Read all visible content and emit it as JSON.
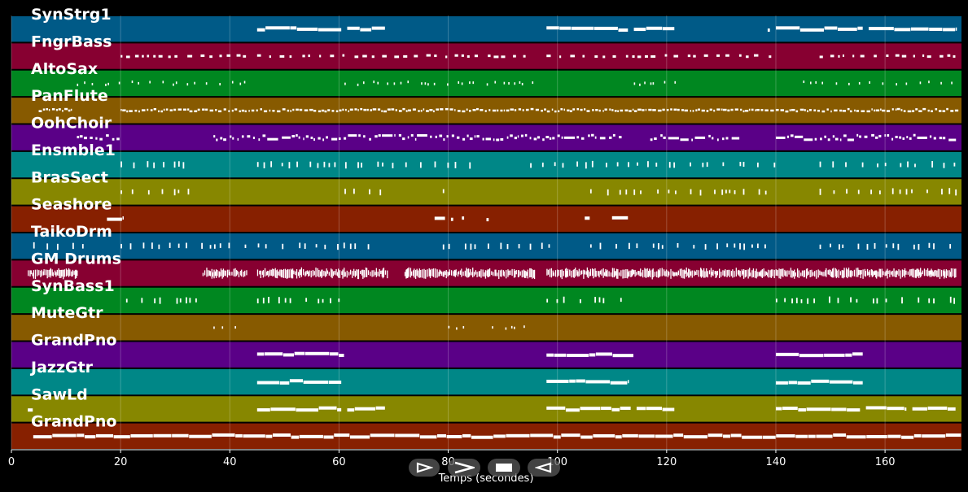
{
  "chart_data": {
    "type": "piano-roll",
    "xlabel": "Temps (secondes)",
    "xlim": [
      0,
      174
    ],
    "xticks": [
      0,
      20,
      40,
      60,
      80,
      100,
      120,
      140,
      160
    ],
    "tracks": [
      {
        "name": "SynStrg1",
        "color": "#005a87",
        "pattern": "block",
        "segments": [
          [
            45,
            60.5
          ],
          [
            61.5,
            68.5
          ],
          [
            98,
            113
          ],
          [
            114,
            121.5
          ],
          [
            138.5,
            139
          ],
          [
            140,
            156
          ],
          [
            157,
            173
          ]
        ]
      },
      {
        "name": "FngrBass",
        "color": "#870031",
        "pattern": "dots",
        "segments": [
          [
            20,
            44
          ],
          [
            45,
            94
          ],
          [
            98,
            139
          ],
          [
            148,
            173
          ]
        ]
      },
      {
        "name": "AltoSax",
        "color": "#008720",
        "pattern": "sparse",
        "segments": [
          [
            12,
            43
          ],
          [
            61,
            96
          ],
          [
            114,
            122
          ],
          [
            145,
            173
          ]
        ]
      },
      {
        "name": "PanFlute",
        "color": "#875a00",
        "pattern": "dense",
        "segments": [
          [
            5,
            11
          ],
          [
            20,
            173
          ]
        ]
      },
      {
        "name": "OohChoir",
        "color": "#5a0087",
        "pattern": "mixed",
        "segments": [
          [
            12,
            20
          ],
          [
            37,
            112
          ],
          [
            117,
            132
          ],
          [
            140,
            173
          ]
        ]
      },
      {
        "name": "Ensmble1",
        "color": "#008787",
        "pattern": "ticks",
        "segments": [
          [
            20,
            34
          ],
          [
            45,
            84
          ],
          [
            95,
            140
          ],
          [
            148,
            173
          ]
        ]
      },
      {
        "name": "BrasSect",
        "color": "#878700",
        "pattern": "ticks",
        "segments": [
          [
            20,
            33
          ],
          [
            61,
            68
          ],
          [
            79,
            80
          ],
          [
            106,
            139
          ],
          [
            148,
            173
          ]
        ]
      },
      {
        "name": "Seashore",
        "color": "#872000",
        "pattern": "block",
        "segments": [
          [
            17.5,
            20.5
          ],
          [
            77.5,
            79.5
          ],
          [
            80.5,
            81
          ],
          [
            82.5,
            83
          ],
          [
            87,
            87.5
          ],
          [
            105,
            106
          ],
          [
            110,
            113
          ]
        ]
      },
      {
        "name": "TaikoDrm",
        "color": "#005a87",
        "pattern": "ticks",
        "segments": [
          [
            4,
            13
          ],
          [
            20,
            68
          ],
          [
            79,
            100
          ],
          [
            106,
            140
          ],
          [
            148,
            173
          ]
        ]
      },
      {
        "name": "GM Drums",
        "color": "#870031",
        "pattern": "drum",
        "segments": [
          [
            3,
            12
          ],
          [
            35,
            43
          ],
          [
            45,
            69
          ],
          [
            72,
            96
          ],
          [
            98,
            140
          ],
          [
            140,
            173
          ]
        ]
      },
      {
        "name": "SynBass1",
        "color": "#008720",
        "pattern": "ticks",
        "segments": [
          [
            21,
            34
          ],
          [
            45,
            60
          ],
          [
            98,
            112
          ],
          [
            140,
            173
          ]
        ]
      },
      {
        "name": "MuteGtr",
        "color": "#875a00",
        "pattern": "sparse",
        "segments": [
          [
            37,
            41
          ],
          [
            80,
            83
          ],
          [
            88,
            94
          ]
        ]
      },
      {
        "name": "GrandPno",
        "color": "#5a0087",
        "pattern": "block",
        "segments": [
          [
            45,
            61
          ],
          [
            98,
            114
          ],
          [
            140,
            156
          ]
        ]
      },
      {
        "name": "JazzGtr",
        "color": "#008787",
        "pattern": "block",
        "segments": [
          [
            45,
            60.5
          ],
          [
            98,
            113
          ],
          [
            140,
            156
          ]
        ]
      },
      {
        "name": "SawLd",
        "color": "#878700",
        "pattern": "block",
        "segments": [
          [
            3,
            4
          ],
          [
            45,
            60.5
          ],
          [
            61.5,
            68.5
          ],
          [
            98,
            113.5
          ],
          [
            114.5,
            121.5
          ],
          [
            140,
            155.5
          ],
          [
            156.5,
            164
          ],
          [
            165,
            173
          ]
        ]
      },
      {
        "name": "GrandPno",
        "color": "#872000",
        "pattern": "block",
        "segments": [
          [
            4,
            174
          ]
        ]
      }
    ]
  },
  "controls": {
    "play_icon": "play-icon",
    "forward_icon": "fast-forward-icon",
    "stop_icon": "stop-icon",
    "rewind_icon": "rewind-icon"
  }
}
